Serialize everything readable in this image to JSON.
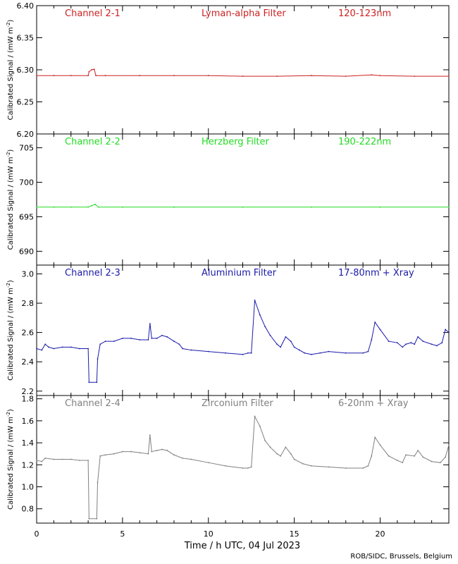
{
  "figure": {
    "xlabel": "Time / h UTC, 04 Jul 2023",
    "credit": "ROB/SIDC, Brussels, Belgium",
    "ylabel_main": "Calibrated Signal / (mW m",
    "ylabel_sup": "-2",
    "ylabel_end": ")"
  },
  "chart_data": [
    {
      "type": "line",
      "name": "Channel 2-1",
      "labels": [
        "Channel 2-1",
        "Lyman-alpha Filter",
        "120-123nm"
      ],
      "color": "#cc2222",
      "xlim": [
        0,
        24
      ],
      "ylim": [
        6.2,
        6.4
      ],
      "yticks": [
        6.2,
        6.25,
        6.3,
        6.35,
        6.4
      ],
      "ytick_labels": [
        "6.20",
        "6.25",
        "6.30",
        "6.35",
        "6.40"
      ],
      "xticks": [
        0,
        5,
        10,
        15,
        20
      ],
      "x": [
        0.0,
        1.0,
        2.0,
        3.0,
        3.05,
        3.2,
        3.35,
        3.45,
        4.0,
        6.0,
        8.0,
        10.0,
        12.0,
        14.0,
        16.0,
        18.0,
        19.5,
        20.0,
        22.0,
        24.0
      ],
      "y": [
        6.291,
        6.291,
        6.291,
        6.291,
        6.297,
        6.3,
        6.301,
        6.291,
        6.291,
        6.291,
        6.291,
        6.291,
        6.29,
        6.29,
        6.291,
        6.29,
        6.292,
        6.291,
        6.29,
        6.29
      ]
    },
    {
      "type": "line",
      "name": "Channel 2-2",
      "labels": [
        "Channel 2-2",
        "Herzberg Filter",
        "190-222nm"
      ],
      "color": "#22dd22",
      "xlim": [
        0,
        24
      ],
      "ylim": [
        688,
        707
      ],
      "yticks": [
        690,
        695,
        700,
        705
      ],
      "ytick_labels": [
        "690",
        "695",
        "700",
        "705"
      ],
      "xticks": [
        0,
        5,
        10,
        15,
        20
      ],
      "x": [
        0.0,
        1.0,
        2.0,
        3.0,
        3.2,
        3.4,
        3.6,
        5.0,
        8.0,
        12.0,
        16.0,
        20.0,
        24.0
      ],
      "y": [
        696.4,
        696.4,
        696.4,
        696.4,
        696.6,
        696.8,
        696.4,
        696.4,
        696.4,
        696.4,
        696.4,
        696.4,
        696.4
      ]
    },
    {
      "type": "line",
      "name": "Channel 2-3",
      "labels": [
        "Channel 2-3",
        "Aluminium Filter",
        "17-80nm + Xray"
      ],
      "color": "#1a1aaa",
      "xlim": [
        0,
        24
      ],
      "ylim": [
        2.17,
        3.06
      ],
      "yticks": [
        2.2,
        2.4,
        2.6,
        2.8,
        3.0
      ],
      "ytick_labels": [
        "2.2",
        "2.4",
        "2.6",
        "2.8",
        "3.0"
      ],
      "xticks": [
        0,
        5,
        10,
        15,
        20
      ],
      "x": [
        0.0,
        0.3,
        0.5,
        0.7,
        1.0,
        1.5,
        2.0,
        2.5,
        3.0,
        3.05,
        3.5,
        3.55,
        3.7,
        4.0,
        4.5,
        5.0,
        5.5,
        6.0,
        6.5,
        6.6,
        6.7,
        7.0,
        7.3,
        7.6,
        8.0,
        8.3,
        8.5,
        9.0,
        10.0,
        11.0,
        12.0,
        12.3,
        12.5,
        12.7,
        13.0,
        13.3,
        13.6,
        14.0,
        14.2,
        14.5,
        14.8,
        15.0,
        15.3,
        15.6,
        16.0,
        16.5,
        17.0,
        18.0,
        19.0,
        19.3,
        19.5,
        19.7,
        20.0,
        20.5,
        21.0,
        21.3,
        21.5,
        21.8,
        22.0,
        22.2,
        22.5,
        23.0,
        23.3,
        23.6,
        23.8,
        24.0
      ],
      "y": [
        2.49,
        2.48,
        2.52,
        2.5,
        2.49,
        2.5,
        2.5,
        2.49,
        2.49,
        2.26,
        2.26,
        2.42,
        2.52,
        2.54,
        2.54,
        2.56,
        2.56,
        2.55,
        2.55,
        2.66,
        2.56,
        2.56,
        2.58,
        2.57,
        2.54,
        2.52,
        2.49,
        2.48,
        2.47,
        2.46,
        2.45,
        2.46,
        2.46,
        2.82,
        2.72,
        2.64,
        2.58,
        2.52,
        2.5,
        2.57,
        2.54,
        2.5,
        2.48,
        2.46,
        2.45,
        2.46,
        2.47,
        2.46,
        2.46,
        2.47,
        2.55,
        2.67,
        2.62,
        2.54,
        2.53,
        2.5,
        2.52,
        2.53,
        2.52,
        2.57,
        2.54,
        2.52,
        2.51,
        2.53,
        2.62,
        2.6
      ]
    },
    {
      "type": "line",
      "name": "Channel 2-4",
      "labels": [
        "Channel 2-4",
        "Zirconium Filter",
        "6-20nm + Xray"
      ],
      "color": "#808080",
      "xlim": [
        0,
        24
      ],
      "ylim": [
        0.67,
        1.83
      ],
      "yticks": [
        0.8,
        1.0,
        1.2,
        1.4,
        1.6,
        1.8
      ],
      "ytick_labels": [
        "0.8",
        "1.0",
        "1.2",
        "1.4",
        "1.6",
        "1.8"
      ],
      "xticks": [
        0,
        5,
        10,
        15,
        20
      ],
      "x": [
        0.0,
        0.3,
        0.5,
        1.0,
        1.5,
        2.0,
        2.5,
        3.0,
        3.05,
        3.5,
        3.55,
        3.7,
        4.0,
        4.5,
        5.0,
        5.5,
        6.0,
        6.5,
        6.6,
        6.7,
        7.0,
        7.3,
        7.6,
        8.0,
        8.5,
        9.0,
        10.0,
        11.0,
        12.0,
        12.3,
        12.5,
        12.7,
        13.0,
        13.3,
        13.6,
        14.0,
        14.2,
        14.5,
        14.8,
        15.0,
        15.5,
        16.0,
        17.0,
        18.0,
        19.0,
        19.3,
        19.5,
        19.7,
        20.0,
        20.5,
        21.0,
        21.3,
        21.5,
        22.0,
        22.2,
        22.5,
        23.0,
        23.5,
        23.8,
        24.0
      ],
      "y": [
        1.24,
        1.23,
        1.26,
        1.25,
        1.25,
        1.25,
        1.24,
        1.24,
        0.71,
        0.71,
        1.04,
        1.28,
        1.29,
        1.3,
        1.32,
        1.32,
        1.31,
        1.3,
        1.47,
        1.32,
        1.33,
        1.34,
        1.33,
        1.29,
        1.26,
        1.25,
        1.22,
        1.19,
        1.17,
        1.17,
        1.18,
        1.64,
        1.55,
        1.42,
        1.36,
        1.3,
        1.28,
        1.36,
        1.3,
        1.25,
        1.21,
        1.19,
        1.18,
        1.17,
        1.17,
        1.19,
        1.28,
        1.45,
        1.38,
        1.28,
        1.24,
        1.22,
        1.29,
        1.28,
        1.33,
        1.27,
        1.23,
        1.22,
        1.27,
        1.38
      ]
    }
  ]
}
